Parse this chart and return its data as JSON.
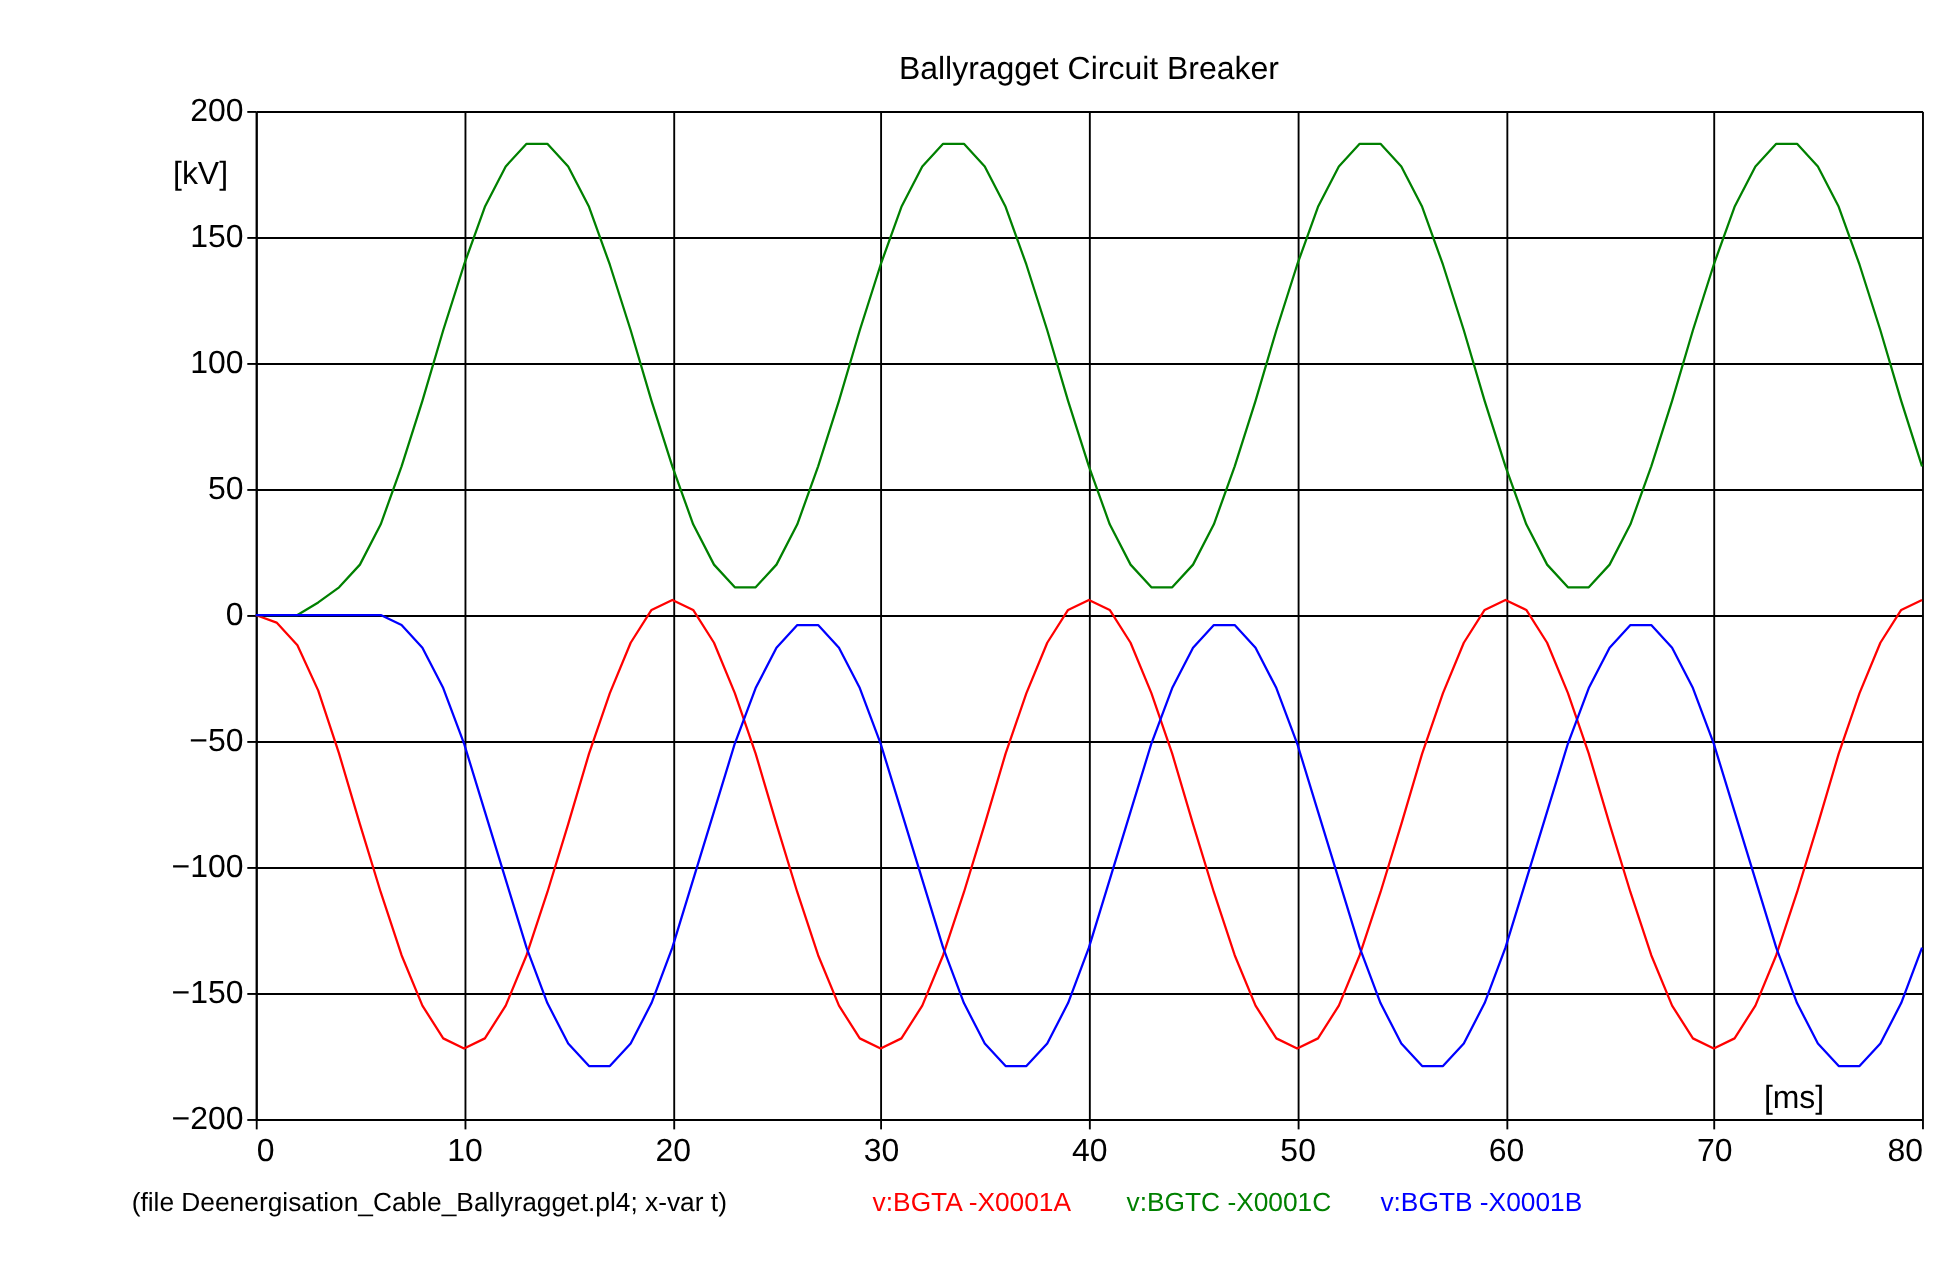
{
  "chart_data": {
    "type": "line",
    "title": "Ballyragget Circuit Breaker",
    "xlabel": "[ms]",
    "ylabel": "[kV]",
    "x": [
      0,
      1,
      2,
      3,
      4,
      5,
      6,
      7,
      8,
      9,
      10,
      11,
      12,
      13,
      14,
      15,
      16,
      17,
      18,
      19,
      20,
      21,
      22,
      23,
      24,
      25,
      26,
      27,
      28,
      29,
      30,
      31,
      32,
      33,
      34,
      35,
      36,
      37,
      38,
      39,
      40,
      41,
      42,
      43,
      44,
      45,
      46,
      47,
      48,
      49,
      50,
      51,
      52,
      53,
      54,
      55,
      56,
      57,
      58,
      59,
      60,
      61,
      62,
      63,
      64,
      65,
      66,
      67,
      68,
      69,
      70,
      71,
      72,
      73,
      74,
      75,
      76,
      77,
      78,
      79,
      80
    ],
    "series": [
      {
        "name": "v:BGTA  -X0001A",
        "color": "#ff0000",
        "values": [
          0,
          -3,
          -12,
          -30,
          -55,
          -83,
          -110,
          -135,
          -155,
          -168,
          -172,
          -168,
          -155,
          -135,
          -110,
          -83,
          -55,
          -31,
          -11,
          2,
          6,
          2,
          -11,
          -31,
          -55,
          -83,
          -110,
          -135,
          -155,
          -168,
          -172,
          -168,
          -155,
          -135,
          -110,
          -83,
          -55,
          -31,
          -11,
          2,
          6,
          2,
          -11,
          -31,
          -55,
          -83,
          -110,
          -135,
          -155,
          -168,
          -172,
          -168,
          -155,
          -135,
          -110,
          -83,
          -55,
          -31,
          -11,
          2,
          6,
          2,
          -11,
          -31,
          -55,
          -83,
          -110,
          -135,
          -155,
          -168,
          -172,
          -168,
          -155,
          -135,
          -110,
          -83,
          -55,
          -31,
          -11,
          2,
          6
        ]
      },
      {
        "name": "v:BGTC  -X0001C",
        "color": "#008000",
        "values": [
          0,
          0,
          0,
          5,
          11,
          20,
          36,
          59,
          85,
          113,
          139,
          162,
          178,
          187,
          187,
          178,
          162,
          139,
          113,
          85,
          59,
          36,
          20,
          11,
          11,
          20,
          36,
          59,
          85,
          113,
          139,
          162,
          178,
          187,
          187,
          178,
          162,
          139,
          113,
          85,
          59,
          36,
          20,
          11,
          11,
          20,
          36,
          59,
          85,
          113,
          139,
          162,
          178,
          187,
          187,
          178,
          162,
          139,
          113,
          85,
          59,
          36,
          20,
          11,
          11,
          20,
          36,
          59,
          85,
          113,
          139,
          162,
          178,
          187,
          187,
          178,
          162,
          139,
          113,
          85,
          59
        ]
      },
      {
        "name": "v:BGTB  -X0001B",
        "color": "#0000ff",
        "values": [
          0,
          0,
          0,
          0,
          0,
          0,
          0,
          -4,
          -13,
          -29,
          -51,
          -78,
          -105,
          -132,
          -154,
          -170,
          -179,
          -179,
          -170,
          -154,
          -132,
          -105,
          -78,
          -51,
          -29,
          -13,
          -4,
          -4,
          -13,
          -29,
          -51,
          -78,
          -105,
          -132,
          -154,
          -170,
          -179,
          -179,
          -170,
          -154,
          -132,
          -105,
          -78,
          -51,
          -29,
          -13,
          -4,
          -4,
          -13,
          -29,
          -51,
          -78,
          -105,
          -132,
          -154,
          -170,
          -179,
          -179,
          -170,
          -154,
          -132,
          -105,
          -78,
          -51,
          -29,
          -13,
          -4,
          -4,
          -13,
          -29,
          -51,
          -78,
          -105,
          -132,
          -154,
          -170,
          -179,
          -179,
          -170,
          -154,
          -132
        ]
      }
    ],
    "xlim": [
      0,
      80
    ],
    "xticks": [
      0,
      10,
      20,
      30,
      40,
      50,
      60,
      70,
      80
    ],
    "ylim": [
      -200,
      200
    ],
    "yticks": [
      -200,
      -150,
      -100,
      -50,
      0,
      50,
      100,
      150,
      200
    ],
    "grid": true,
    "legend": "bottom",
    "marker": "none",
    "line_style": "solid",
    "annotations": [
      "(file Deenergisation_Cable_Ballyragget.pl4; x-var t)"
    ]
  }
}
